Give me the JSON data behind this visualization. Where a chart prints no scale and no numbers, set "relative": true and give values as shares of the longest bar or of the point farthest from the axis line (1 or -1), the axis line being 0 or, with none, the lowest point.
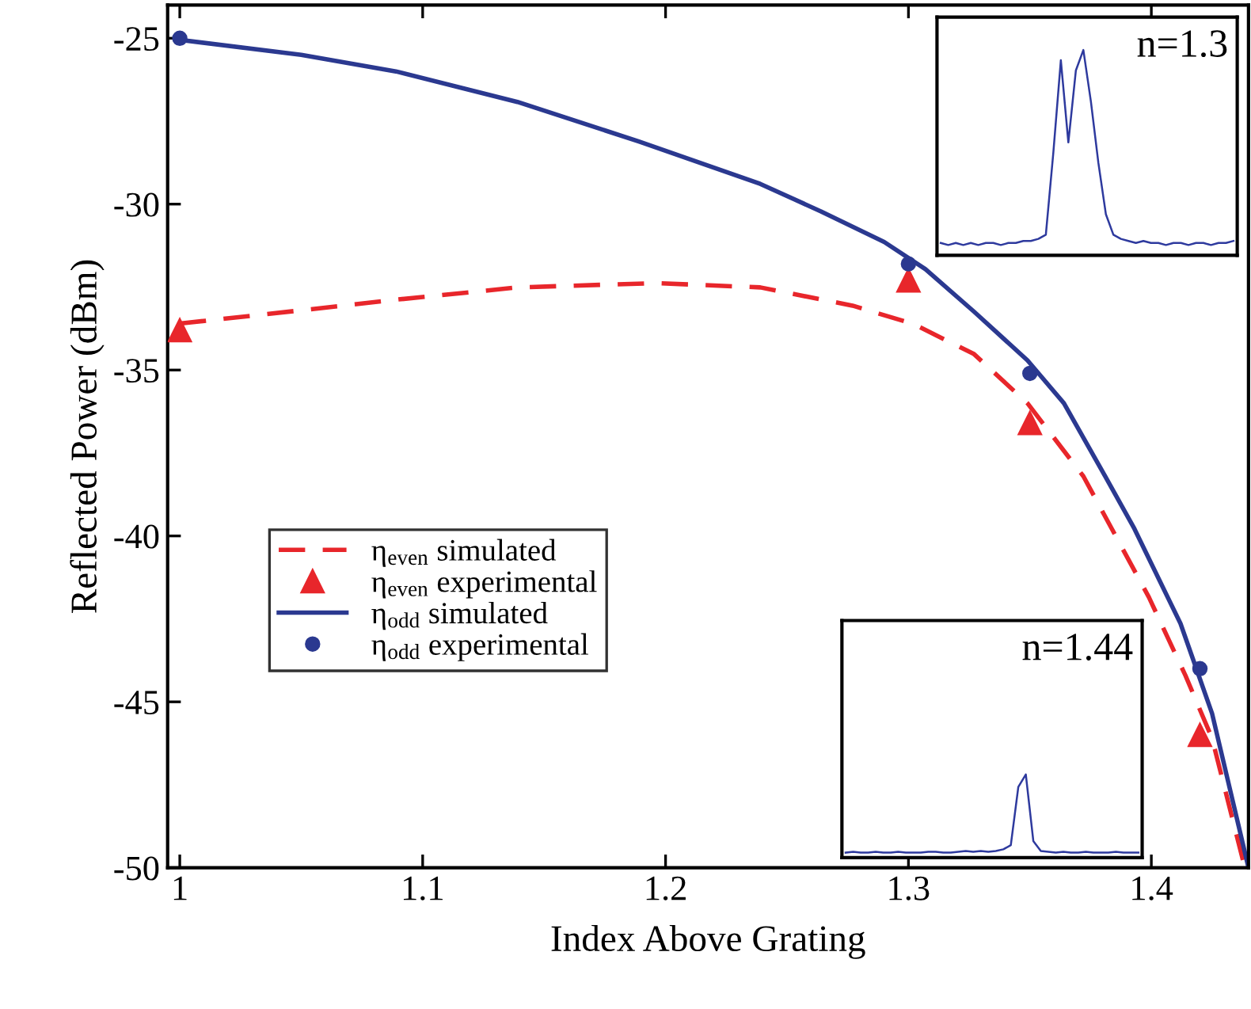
{
  "chart_data": [
    {
      "type": "line",
      "xlabel": "Index Above Grating",
      "ylabel": "Reflected Power (dBm)",
      "xlim": [
        0.995,
        1.44
      ],
      "xticks": [
        1,
        1.1,
        1.2,
        1.3,
        1.4
      ],
      "ylim": [
        -50,
        -24
      ],
      "yticks": [
        -50,
        -45,
        -40,
        -35,
        -30,
        -25
      ],
      "grid": false,
      "legend": "center left",
      "series": [
        {
          "name": "η$_{even}$ simulated",
          "line_style": "dashed",
          "color": "#e8262b",
          "marker": "none",
          "x": [
            1.0,
            1.05,
            1.089,
            1.139,
            1.196,
            1.239,
            1.277,
            1.302,
            1.327,
            1.349,
            1.372,
            1.399,
            1.414,
            1.425,
            1.4385
          ],
          "values": [
            -33.6,
            -33.2,
            -32.88,
            -32.51,
            -32.38,
            -32.51,
            -33.06,
            -33.61,
            -34.52,
            -36.0,
            -38.2,
            -41.85,
            -44.2,
            -46.1,
            -50
          ]
        },
        {
          "name": "η$_{even}$ experimental",
          "type": "scatter",
          "marker": "triangle",
          "color": "#e8262b",
          "x": [
            1.0,
            1.3,
            1.35,
            1.42
          ],
          "values": [
            -33.8,
            -32.3,
            -36.6,
            -46.0
          ]
        },
        {
          "name": "η$_{odd}$ simulated",
          "line_style": "solid",
          "color": "#2b3990",
          "marker": "none",
          "x": [
            1.0,
            1.05,
            1.089,
            1.139,
            1.189,
            1.239,
            1.264,
            1.29,
            1.307,
            1.327,
            1.349,
            1.364,
            1.381,
            1.393,
            1.412,
            1.425,
            1.44
          ],
          "values": [
            -25.05,
            -25.5,
            -26.0,
            -26.92,
            -28.11,
            -29.39,
            -30.22,
            -31.14,
            -31.96,
            -33.24,
            -34.71,
            -36.0,
            -38.2,
            -39.78,
            -42.64,
            -45.35,
            -50
          ]
        },
        {
          "name": "η$_{odd}$ experimental",
          "type": "scatter",
          "marker": "circle",
          "color": "#2b3990",
          "x": [
            1.0,
            1.3,
            1.35,
            1.42
          ],
          "values": [
            -25.0,
            -31.8,
            -35.1,
            -44.0
          ]
        }
      ]
    },
    {
      "type": "line",
      "relative": true,
      "annotations": [
        "n=1.3"
      ],
      "categories": [
        null,
        null,
        null,
        null,
        null,
        null,
        null,
        null,
        null,
        null,
        null,
        null,
        null,
        null,
        null,
        null,
        null,
        null,
        null,
        null,
        null,
        null,
        null,
        null,
        null,
        null,
        null,
        null,
        null,
        null,
        null,
        null,
        null,
        null,
        null,
        null,
        null,
        null,
        null,
        null
      ],
      "series": [
        {
          "color": "#2e3a9e",
          "values": [
            0.06,
            0.05,
            0.06,
            0.05,
            0.06,
            0.05,
            0.06,
            0.06,
            0.05,
            0.06,
            0.06,
            0.07,
            0.07,
            0.08,
            0.1,
            0.5,
            0.95,
            0.55,
            0.9,
            1.0,
            0.75,
            0.45,
            0.2,
            0.1,
            0.08,
            0.07,
            0.06,
            0.07,
            0.06,
            0.06,
            0.05,
            0.06,
            0.06,
            0.05,
            0.06,
            0.06,
            0.05,
            0.06,
            0.06,
            0.07
          ]
        }
      ]
    },
    {
      "type": "line",
      "relative": true,
      "annotations": [
        "n=1.44"
      ],
      "categories": [
        null,
        null,
        null,
        null,
        null,
        null,
        null,
        null,
        null,
        null,
        null,
        null,
        null,
        null,
        null,
        null,
        null,
        null,
        null,
        null,
        null,
        null,
        null,
        null,
        null,
        null,
        null,
        null,
        null,
        null,
        null,
        null,
        null,
        null,
        null,
        null,
        null,
        null,
        null,
        null
      ],
      "series": [
        {
          "color": "#2e3a9e",
          "values": [
            0.06,
            0.07,
            0.06,
            0.06,
            0.07,
            0.06,
            0.06,
            0.07,
            0.06,
            0.06,
            0.06,
            0.07,
            0.07,
            0.06,
            0.06,
            0.07,
            0.08,
            0.07,
            0.08,
            0.07,
            0.08,
            0.1,
            0.15,
            0.85,
            1.0,
            0.2,
            0.08,
            0.07,
            0.06,
            0.07,
            0.06,
            0.06,
            0.07,
            0.06,
            0.06,
            0.06,
            0.07,
            0.06,
            0.06,
            0.06
          ]
        }
      ]
    }
  ]
}
